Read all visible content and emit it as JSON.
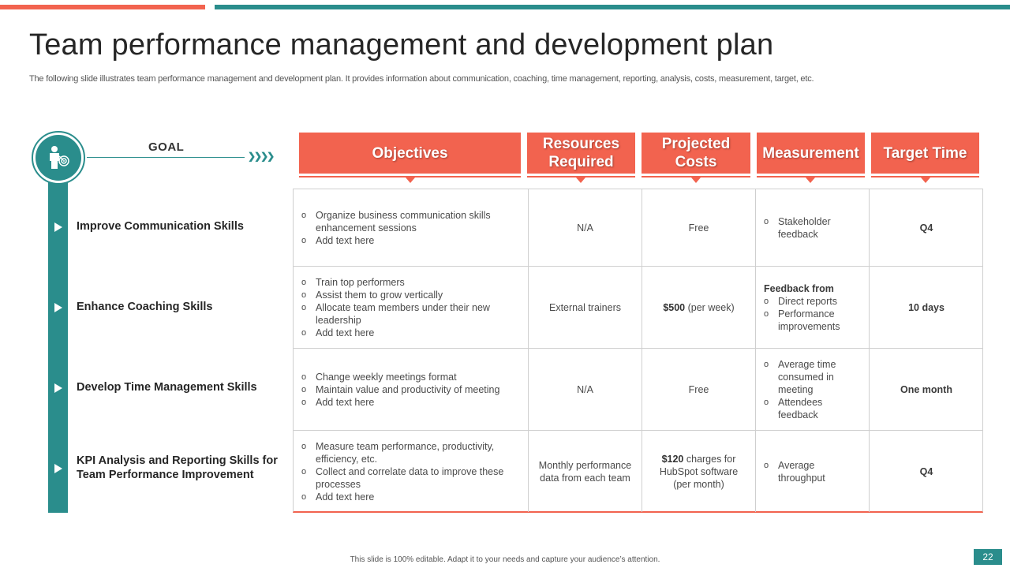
{
  "slide": {
    "title": "Team performance management and development plan",
    "subtitle": "The following slide illustrates team performance management and development plan. It provides information about communication, coaching, time management, reporting, analysis, costs, measurement, target, etc.",
    "footer": "This slide is 100% editable. Adapt it to your needs and capture your audience’s attention.",
    "page_number": "22"
  },
  "colors": {
    "coral": "#f2634f",
    "teal": "#2a8d8c"
  },
  "goal": {
    "label": "GOAL",
    "icon": "target-person-icon",
    "items": [
      "Improve Communication Skills",
      "Enhance Coaching Skills",
      "Develop Time Management Skills",
      "KPI Analysis and Reporting Skills for Team Performance Improvement"
    ]
  },
  "table": {
    "headers": [
      "Objectives",
      "Resources Required",
      "Projected Costs",
      "Measurement",
      "Target Time"
    ],
    "rows": [
      {
        "objectives": [
          "Organize business communication skills enhancement sessions",
          "Add text here"
        ],
        "resources": "N/A",
        "costs": {
          "amount": "",
          "rest": "Free"
        },
        "measurement": {
          "lead": "",
          "items": [
            "Stakeholder feedback"
          ]
        },
        "target": "Q4"
      },
      {
        "objectives": [
          "Train top performers",
          "Assist them to grow vertically",
          "Allocate team members under their new leadership",
          "Add text here"
        ],
        "resources": "External trainers",
        "costs": {
          "amount": "$500",
          "rest": " (per week)"
        },
        "measurement": {
          "lead": "Feedback from",
          "items": [
            "Direct reports",
            "Performance improvements"
          ]
        },
        "target": "10 days"
      },
      {
        "objectives": [
          "Change weekly meetings format",
          "Maintain value and productivity of meeting",
          "Add text here"
        ],
        "resources": "N/A",
        "costs": {
          "amount": "",
          "rest": "Free"
        },
        "measurement": {
          "lead": "",
          "items": [
            "Average time consumed in meeting",
            "Attendees feedback"
          ]
        },
        "target": "One month"
      },
      {
        "objectives": [
          "Measure team performance, productivity, efficiency, etc.",
          "Collect and correlate data to improve these processes",
          "Add text here"
        ],
        "resources": "Monthly performance data from each team",
        "costs": {
          "amount": "$120",
          "rest": " charges for HubSpot software (per month)"
        },
        "measurement": {
          "lead": "",
          "items": [
            "Average throughput"
          ]
        },
        "target": "Q4"
      }
    ]
  }
}
